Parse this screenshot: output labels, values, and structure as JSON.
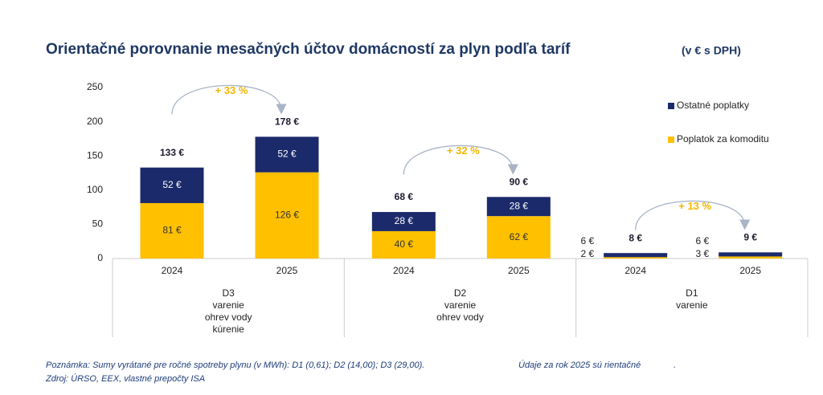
{
  "chart_data": {
    "type": "bar",
    "stacked": true,
    "title": "Orientačné porovnanie mesačných účtov domácností za plyn podľa taríf",
    "subtitle": "(v € s DPH)",
    "categories": [
      "2024",
      "2025",
      "2024",
      "2025",
      "2024",
      "2025"
    ],
    "groups": [
      [
        "D3",
        "varenie",
        "ohrev vody",
        "kúrenie"
      ],
      [
        "D2",
        "varenie",
        "ohrev vody"
      ],
      [
        "D1",
        "varenie"
      ]
    ],
    "series": [
      {
        "name": "Poplatok za komoditu",
        "color": "#ffc000",
        "values": [
          81,
          126,
          40,
          62,
          2,
          3
        ],
        "value_labels": [
          "81 €",
          "126 €",
          "40 €",
          "62 €",
          "2 €",
          "3 €"
        ]
      },
      {
        "name": "Ostatné poplatky",
        "color": "#1b2a6b",
        "values": [
          52,
          52,
          28,
          28,
          6,
          6
        ],
        "value_labels": [
          "52 €",
          "52 €",
          "28 €",
          "28 €",
          "6 €",
          "6 €"
        ]
      }
    ],
    "totals": {
      "values": [
        133,
        178,
        68,
        90,
        8,
        9
      ],
      "value_labels": [
        "133 €",
        "178 €",
        "68 €",
        "90 €",
        "8 €",
        "9 €"
      ]
    },
    "annotations": [
      "+ 33 %",
      "+ 32 %",
      "+ 13 %"
    ],
    "ylim": [
      0,
      250
    ],
    "yticks": [
      0,
      50,
      100,
      150,
      200,
      250
    ],
    "grid": false,
    "legend": "upper right"
  },
  "notes": [
    "Poznámka: Sumy vyrátané pre ročné spotreby plynu (v MWh): D1 (0,61); D2 (14,00); D3 (29,00).",
    "Zdroj: ÚRSO, EEX, vlastné prepočty ISA"
  ],
  "note_right": "Údaje za rok 2025 sú rientačné",
  "note_dot": "."
}
